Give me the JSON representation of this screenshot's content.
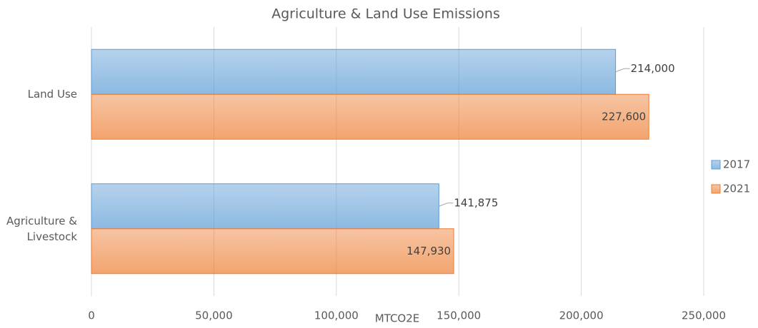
{
  "chart_data": {
    "type": "barh",
    "title": "Agriculture & Land Use Emissions",
    "categories": [
      "Land Use",
      "Agriculture & Livestock"
    ],
    "series": [
      {
        "name": "2017",
        "color": "#5b9bd5",
        "values": [
          214000,
          141875
        ],
        "value_labels": [
          "214,000",
          "141,875"
        ]
      },
      {
        "name": "2021",
        "color": "#ed7d31",
        "values": [
          227600,
          147930
        ],
        "value_labels": [
          "227,600",
          "147,930"
        ]
      }
    ],
    "x_label": "MTCO2E",
    "xlim": [
      0,
      250000
    ],
    "xticks": [
      0,
      {
        "value": 50000,
        "label": "50,000"
      },
      {
        "value": 100000,
        "label": "100,000"
      },
      {
        "value": 150000,
        "label": "150,000"
      },
      {
        "value": 200000,
        "label": "200,000"
      },
      {
        "value": 250000,
        "label": "250,000"
      }
    ],
    "grid": true,
    "legend": "right"
  }
}
